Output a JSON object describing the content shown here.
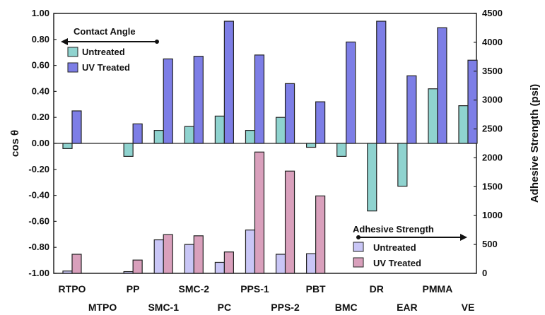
{
  "chart_data": [
    {
      "type": "bar",
      "ylabel": "cos θ",
      "ylim": [
        -1.0,
        1.0
      ],
      "yticks": [
        "1.00",
        "0.80",
        "0.60",
        "0.40",
        "0.20",
        "0.00",
        "-0.20",
        "-0.40",
        "-0.60",
        "-0.80",
        "-1.00"
      ],
      "categories": [
        "RTPO",
        "MTPO",
        "PP",
        "SMC-1",
        "SMC-2",
        "PC",
        "PPS-1",
        "PPS-2",
        "PBT",
        "BMC",
        "DR",
        "EAR",
        "PMMA",
        "VE"
      ],
      "legend_title": "Contact Angle",
      "legend_placement": "top-left",
      "series": [
        {
          "name": "Untreated",
          "color": "#8fd3cf",
          "values": [
            -0.04,
            null,
            -0.1,
            0.1,
            0.13,
            0.21,
            0.1,
            0.2,
            -0.03,
            -0.1,
            -0.52,
            -0.33,
            0.42,
            0.29
          ]
        },
        {
          "name": "UV Treated",
          "color": "#7d7ee6",
          "values": [
            0.25,
            null,
            0.15,
            0.65,
            0.67,
            0.94,
            0.68,
            0.46,
            0.32,
            0.78,
            0.94,
            0.52,
            0.89,
            0.64
          ]
        }
      ]
    },
    {
      "type": "bar",
      "ylabel": "Adhesive Strength (psi)",
      "ylim": [
        0,
        4500
      ],
      "yticks": [
        "4500",
        "4000",
        "3500",
        "3000",
        "2500",
        "2000",
        "1500",
        "1000",
        "500",
        "0"
      ],
      "categories": [
        "RTPO",
        "MTPO",
        "PP",
        "SMC-1",
        "SMC-2",
        "PC",
        "PPS-1",
        "PPS-2",
        "PBT",
        "BMC",
        "DR",
        "EAR",
        "PMMA",
        "VE"
      ],
      "legend_title": "Adhesive Strength",
      "legend_placement": "bottom-right",
      "series": [
        {
          "name": "Untreated",
          "color": "#c9c6f6",
          "values": [
            40,
            null,
            30,
            580,
            500,
            190,
            750,
            330,
            340,
            null,
            null,
            null,
            null,
            null
          ]
        },
        {
          "name": "UV Treated",
          "color": "#d9a0bc",
          "values": [
            330,
            null,
            230,
            670,
            650,
            370,
            2100,
            1770,
            1340,
            null,
            null,
            null,
            null,
            null
          ]
        }
      ]
    }
  ]
}
